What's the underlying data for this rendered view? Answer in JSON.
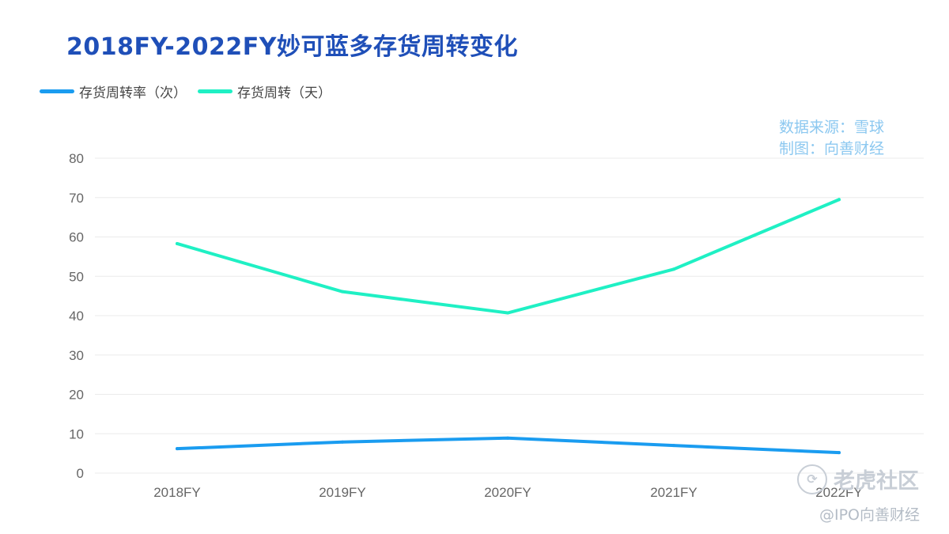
{
  "chart_data": {
    "type": "line",
    "title": "2018FY-2022FY妙可蓝多存货周转变化",
    "categories": [
      "2018FY",
      "2019FY",
      "2020FY",
      "2021FY",
      "2022FY"
    ],
    "ylim": [
      0,
      80
    ],
    "yticks": [
      0,
      10,
      20,
      30,
      40,
      50,
      60,
      70,
      80
    ],
    "series": [
      {
        "name": "存货周转率（次）",
        "color": "#1a9cf0",
        "values": [
          6.2,
          7.9,
          8.9,
          7.0,
          5.2
        ]
      },
      {
        "name": "存货周转（天）",
        "color": "#1ff0c4",
        "values": [
          58.3,
          46.1,
          40.7,
          51.8,
          69.5
        ]
      }
    ],
    "legend_position": "top-left",
    "grid": true
  },
  "source_line1": "数据来源：雪球",
  "source_line2": "制图：向善财经",
  "watermark": {
    "brand": "老虎社区",
    "handle": "@IPO向善财经"
  },
  "colors": {
    "title": "#1f4fb8",
    "source": "#8cc8f0",
    "grid": "#ebebeb",
    "tick": "#666666"
  }
}
